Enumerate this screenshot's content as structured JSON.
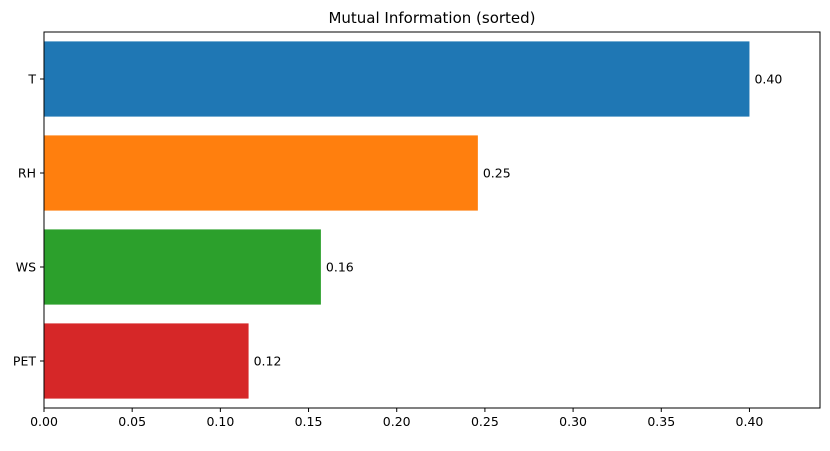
{
  "chart_data": {
    "type": "bar",
    "orientation": "horizontal",
    "title": "Mutual Information (sorted)",
    "xlabel": "",
    "ylabel": "",
    "categories": [
      "T",
      "RH",
      "WS",
      "PET"
    ],
    "values": [
      0.4,
      0.246,
      0.157,
      0.116
    ],
    "value_labels": [
      "0.40",
      "0.25",
      "0.16",
      "0.12"
    ],
    "colors": [
      "#1f77b4",
      "#ff7f0e",
      "#2ca02c",
      "#d62728"
    ],
    "xlim": [
      0,
      0.44
    ],
    "xticks": [
      "0.00",
      "0.05",
      "0.10",
      "0.15",
      "0.20",
      "0.25",
      "0.30",
      "0.35",
      "0.40"
    ],
    "grid": false,
    "legend": "none"
  }
}
